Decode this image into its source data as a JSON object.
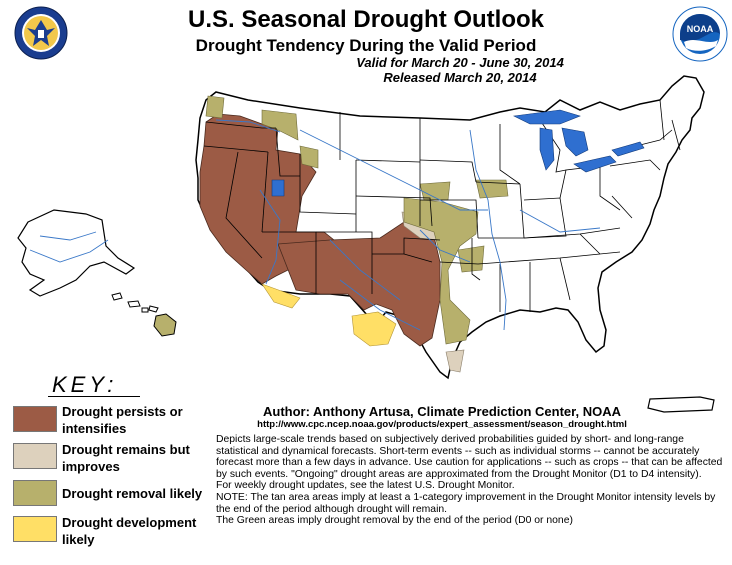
{
  "header": {
    "title": "U.S. Seasonal Drought Outlook",
    "subtitle": "Drought Tendency During the Valid Period",
    "valid": "Valid for March 20 - June 30, 2014",
    "released": "Released March 20, 2014"
  },
  "logos": {
    "left": {
      "name": "department-of-commerce-seal",
      "color": "#1a3d8f"
    },
    "right": {
      "name": "noaa-logo",
      "color": "#1565c0",
      "text": "NOAA",
      "ring_text": "NATIONAL OCEANIC AND ATMOSPHERIC ADMINISTRATION"
    }
  },
  "legend": {
    "title": "KEY:",
    "items": [
      {
        "label": "Drought persists or intensifies",
        "color": "#9c5b45"
      },
      {
        "label": "Drought remains but improves",
        "color": "#ddd1bd"
      },
      {
        "label": "Drought removal likely",
        "color": "#b7b06c"
      },
      {
        "label": "Drought development likely",
        "color": "#ffdf66"
      }
    ]
  },
  "credits": {
    "author": "Author: Anthony Artusa, Climate Prediction Center, NOAA",
    "url": "http://www.cpc.ncep.noaa.gov/products/expert_assessment/season_drought.html"
  },
  "description": [
    "Depicts large-scale trends based on subjectively derived probabilities guided by short- and long-range statistical and dynamical forecasts. Short-term events -- such as individual storms -- cannot be accurately forecast more than a few days in advance. Use caution for applications -- such as crops -- that can be affected by such events. \"Ongoing\" drought areas are approximated from the Drought Monitor (D1 to D4 intensity).",
    "For weekly drought updates, see the latest U.S. Drought Monitor.",
    "NOTE: The tan area areas imply at least a 1-category improvement in the Drought Monitor intensity levels by the end of the period although drought will remain.",
    "The Green areas imply drought removal by the end of the period (D0 or none)"
  ],
  "map_colors": {
    "land": "#ffffff",
    "boundary": "#000000",
    "river": "#3a78c8",
    "lake": "#2f6fd0",
    "persists": "#9c5b45",
    "improves": "#ddd1bd",
    "removal": "#b7b06c",
    "development": "#ffdf66"
  }
}
